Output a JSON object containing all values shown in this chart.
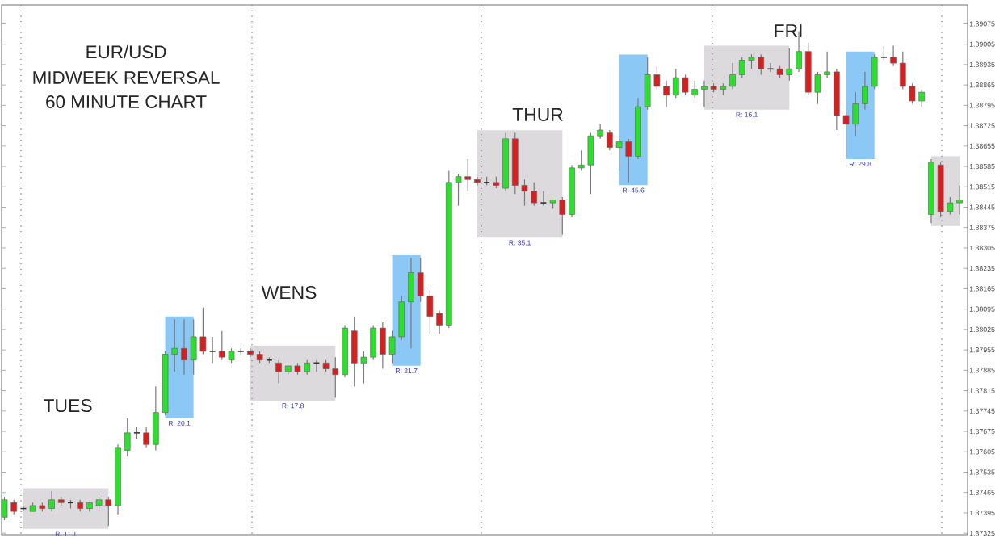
{
  "chart_data": {
    "type": "candlestick",
    "title": "EUR/USD",
    "subtitle": "MIDWEEK REVERSAL",
    "annotations": [
      "60 MINUTE CHART",
      "TUES",
      "WENS",
      "THUR",
      "FRI",
      "R: 11.1",
      "R: 20.1",
      "R: 17.8",
      "R: 31.7",
      "R: 35.1",
      "R: 45.6",
      "R: 16.1",
      "R: 29.8"
    ],
    "categories": [
      null,
      null,
      null,
      null,
      null,
      null,
      null,
      null,
      null,
      null,
      null,
      null,
      null,
      null,
      null,
      null,
      null,
      null,
      null,
      null,
      null,
      null,
      null,
      null,
      null,
      null,
      null,
      null,
      null,
      null,
      null,
      null,
      null,
      null,
      null,
      null,
      null,
      null,
      null,
      null,
      null,
      null,
      null,
      null,
      null,
      null,
      null,
      null,
      null,
      null,
      null,
      null,
      null,
      null,
      null,
      null,
      null,
      null,
      null,
      null,
      null,
      null,
      null,
      null,
      null,
      null,
      null,
      null,
      null,
      null,
      null,
      null,
      null,
      null,
      null,
      null,
      null,
      null,
      null,
      null,
      null,
      null,
      null,
      null,
      null,
      null,
      null,
      null,
      null,
      null,
      null,
      null,
      null,
      null,
      null,
      null,
      null,
      null,
      null,
      null,
      null,
      null
    ],
    "ohlc": [
      [
        1.3738,
        1.3745,
        1.3737,
        1.3744
      ],
      [
        1.3743,
        1.3744,
        1.3739,
        1.374
      ],
      [
        1.3741,
        1.3742,
        1.374,
        1.3741
      ],
      [
        1.374,
        1.3743,
        1.374,
        1.3742
      ],
      [
        1.3742,
        1.3743,
        1.374,
        1.3741
      ],
      [
        1.3741,
        1.3747,
        1.374,
        1.3744
      ],
      [
        1.3744,
        1.3745,
        1.3742,
        1.3743
      ],
      [
        1.3743,
        1.3744,
        1.3741,
        1.3743
      ],
      [
        1.3743,
        1.3744,
        1.374,
        1.3741
      ],
      [
        1.3741,
        1.3743,
        1.374,
        1.3743
      ],
      [
        1.3742,
        1.3745,
        1.3741,
        1.3744
      ],
      [
        1.3744,
        1.3745,
        1.3735,
        1.3742
      ],
      [
        1.3742,
        1.3763,
        1.3739,
        1.3762
      ],
      [
        1.3761,
        1.3772,
        1.3759,
        1.3767
      ],
      [
        1.3767,
        1.3769,
        1.3765,
        1.3767
      ],
      [
        1.3767,
        1.3769,
        1.3762,
        1.3763
      ],
      [
        1.3763,
        1.3783,
        1.3761,
        1.3774
      ],
      [
        1.3774,
        1.3795,
        1.3773,
        1.3794
      ],
      [
        1.3794,
        1.3806,
        1.3788,
        1.3796
      ],
      [
        1.3796,
        1.3806,
        1.3787,
        1.3792
      ],
      [
        1.3792,
        1.3806,
        1.3787,
        1.38
      ],
      [
        1.38,
        1.381,
        1.3794,
        1.3795
      ],
      [
        1.3795,
        1.38,
        1.3791,
        1.3795
      ],
      [
        1.3795,
        1.3802,
        1.3792,
        1.3793
      ],
      [
        1.3792,
        1.3796,
        1.3791,
        1.3795
      ],
      [
        1.3795,
        1.3796,
        1.3794,
        1.3795
      ],
      [
        1.3795,
        1.3796,
        1.3793,
        1.3794
      ],
      [
        1.3794,
        1.3795,
        1.3791,
        1.3792
      ],
      [
        1.3792,
        1.3793,
        1.3791,
        1.3792
      ],
      [
        1.3791,
        1.3792,
        1.3784,
        1.3788
      ],
      [
        1.3788,
        1.379,
        1.3787,
        1.379
      ],
      [
        1.379,
        1.3791,
        1.3787,
        1.3788
      ],
      [
        1.3788,
        1.3792,
        1.3787,
        1.3791
      ],
      [
        1.3791,
        1.3792,
        1.3788,
        1.3791
      ],
      [
        1.3791,
        1.3792,
        1.3788,
        1.3789
      ],
      [
        1.3789,
        1.3793,
        1.3779,
        1.3787
      ],
      [
        1.3787,
        1.3804,
        1.3786,
        1.3803
      ],
      [
        1.3802,
        1.3807,
        1.3783,
        1.3791
      ],
      [
        1.3791,
        1.3795,
        1.3784,
        1.3793
      ],
      [
        1.3793,
        1.3804,
        1.3792,
        1.3803
      ],
      [
        1.3803,
        1.3805,
        1.3789,
        1.3794
      ],
      [
        1.3794,
        1.3802,
        1.3791,
        1.38
      ],
      [
        1.38,
        1.3814,
        1.3799,
        1.3812
      ],
      [
        1.3812,
        1.3827,
        1.3796,
        1.3822
      ],
      [
        1.3822,
        1.3827,
        1.3812,
        1.3814
      ],
      [
        1.3814,
        1.3816,
        1.3801,
        1.3807
      ],
      [
        1.3808,
        1.3809,
        1.3801,
        1.3804
      ],
      [
        1.3804,
        1.3857,
        1.3803,
        1.3853
      ],
      [
        1.3853,
        1.3856,
        1.3845,
        1.3855
      ],
      [
        1.3855,
        1.3861,
        1.385,
        1.3854
      ],
      [
        1.3854,
        1.3855,
        1.3852,
        1.3853
      ],
      [
        1.3853,
        1.3855,
        1.3852,
        1.3853
      ],
      [
        1.3853,
        1.3855,
        1.3851,
        1.3852
      ],
      [
        1.3851,
        1.387,
        1.385,
        1.3868
      ],
      [
        1.3868,
        1.387,
        1.3849,
        1.3852
      ],
      [
        1.3852,
        1.3854,
        1.3845,
        1.385
      ],
      [
        1.385,
        1.3853,
        1.3845,
        1.3846
      ],
      [
        1.3846,
        1.385,
        1.3845,
        1.3846
      ],
      [
        1.3846,
        1.3847,
        1.3844,
        1.3847
      ],
      [
        1.3847,
        1.3848,
        1.3835,
        1.3842
      ],
      [
        1.3842,
        1.3859,
        1.3841,
        1.3858
      ],
      [
        1.3858,
        1.3864,
        1.3857,
        1.3859
      ],
      [
        1.3859,
        1.387,
        1.3849,
        1.3869
      ],
      [
        1.3869,
        1.3873,
        1.3868,
        1.3871
      ],
      [
        1.387,
        1.3871,
        1.3864,
        1.3865
      ],
      [
        1.3865,
        1.3868,
        1.3857,
        1.3867
      ],
      [
        1.3867,
        1.3868,
        1.3853,
        1.3862
      ],
      [
        1.3862,
        1.3882,
        1.3861,
        1.3879
      ],
      [
        1.3879,
        1.3896,
        1.3878,
        1.389
      ],
      [
        1.389,
        1.3893,
        1.3885,
        1.3886
      ],
      [
        1.3886,
        1.3888,
        1.3879,
        1.3883
      ],
      [
        1.3883,
        1.3892,
        1.3882,
        1.3889
      ],
      [
        1.3889,
        1.389,
        1.3883,
        1.3884
      ],
      [
        1.3883,
        1.3888,
        1.3882,
        1.3885
      ],
      [
        1.3885,
        1.3888,
        1.3879,
        1.3886
      ],
      [
        1.3886,
        1.3887,
        1.3884,
        1.3885
      ],
      [
        1.3885,
        1.3887,
        1.3883,
        1.3886
      ],
      [
        1.3886,
        1.3894,
        1.3885,
        1.389
      ],
      [
        1.389,
        1.3896,
        1.3889,
        1.3895
      ],
      [
        1.3895,
        1.3897,
        1.3892,
        1.3896
      ],
      [
        1.3896,
        1.3897,
        1.389,
        1.3892
      ],
      [
        1.3892,
        1.3894,
        1.3891,
        1.3892
      ],
      [
        1.3892,
        1.3893,
        1.3889,
        1.389
      ],
      [
        1.389,
        1.3899,
        1.3888,
        1.3892
      ],
      [
        1.3892,
        1.3905,
        1.3891,
        1.3898
      ],
      [
        1.3898,
        1.3901,
        1.3883,
        1.3884
      ],
      [
        1.3884,
        1.3891,
        1.388,
        1.389
      ],
      [
        1.389,
        1.3898,
        1.3889,
        1.3891
      ],
      [
        1.3891,
        1.3892,
        1.3871,
        1.3876
      ],
      [
        1.3876,
        1.3877,
        1.3862,
        1.3873
      ],
      [
        1.3873,
        1.3884,
        1.3869,
        1.388
      ],
      [
        1.388,
        1.3891,
        1.3878,
        1.3886
      ],
      [
        1.3886,
        1.3897,
        1.3885,
        1.3896
      ],
      [
        1.3896,
        1.39,
        1.3895,
        1.3896
      ],
      [
        1.3896,
        1.39,
        1.3893,
        1.3894
      ],
      [
        1.3894,
        1.3898,
        1.3885,
        1.3886
      ],
      [
        1.3886,
        1.3887,
        1.388,
        1.3881
      ],
      [
        1.3881,
        1.3885,
        1.3879,
        1.3884
      ],
      [
        1.3842,
        1.3861,
        1.3839,
        1.386
      ],
      [
        1.3859,
        1.386,
        1.3841,
        1.3843
      ],
      [
        1.3843,
        1.3848,
        1.3842,
        1.3846
      ],
      [
        1.3846,
        1.3852,
        1.3842,
        1.3847
      ]
    ],
    "ylim": [
      1.3732,
      1.3914
    ],
    "yticks": [
      1.37325,
      1.37395,
      1.37465,
      1.37535,
      1.37605,
      1.37675,
      1.37745,
      1.37815,
      1.37885,
      1.37955,
      1.38025,
      1.38095,
      1.38165,
      1.38235,
      1.38305,
      1.38375,
      1.38445,
      1.38515,
      1.38585,
      1.38655,
      1.38725,
      1.38795,
      1.38865,
      1.38935,
      1.39005,
      1.39075
    ],
    "tick_labels": "y"
  }
}
